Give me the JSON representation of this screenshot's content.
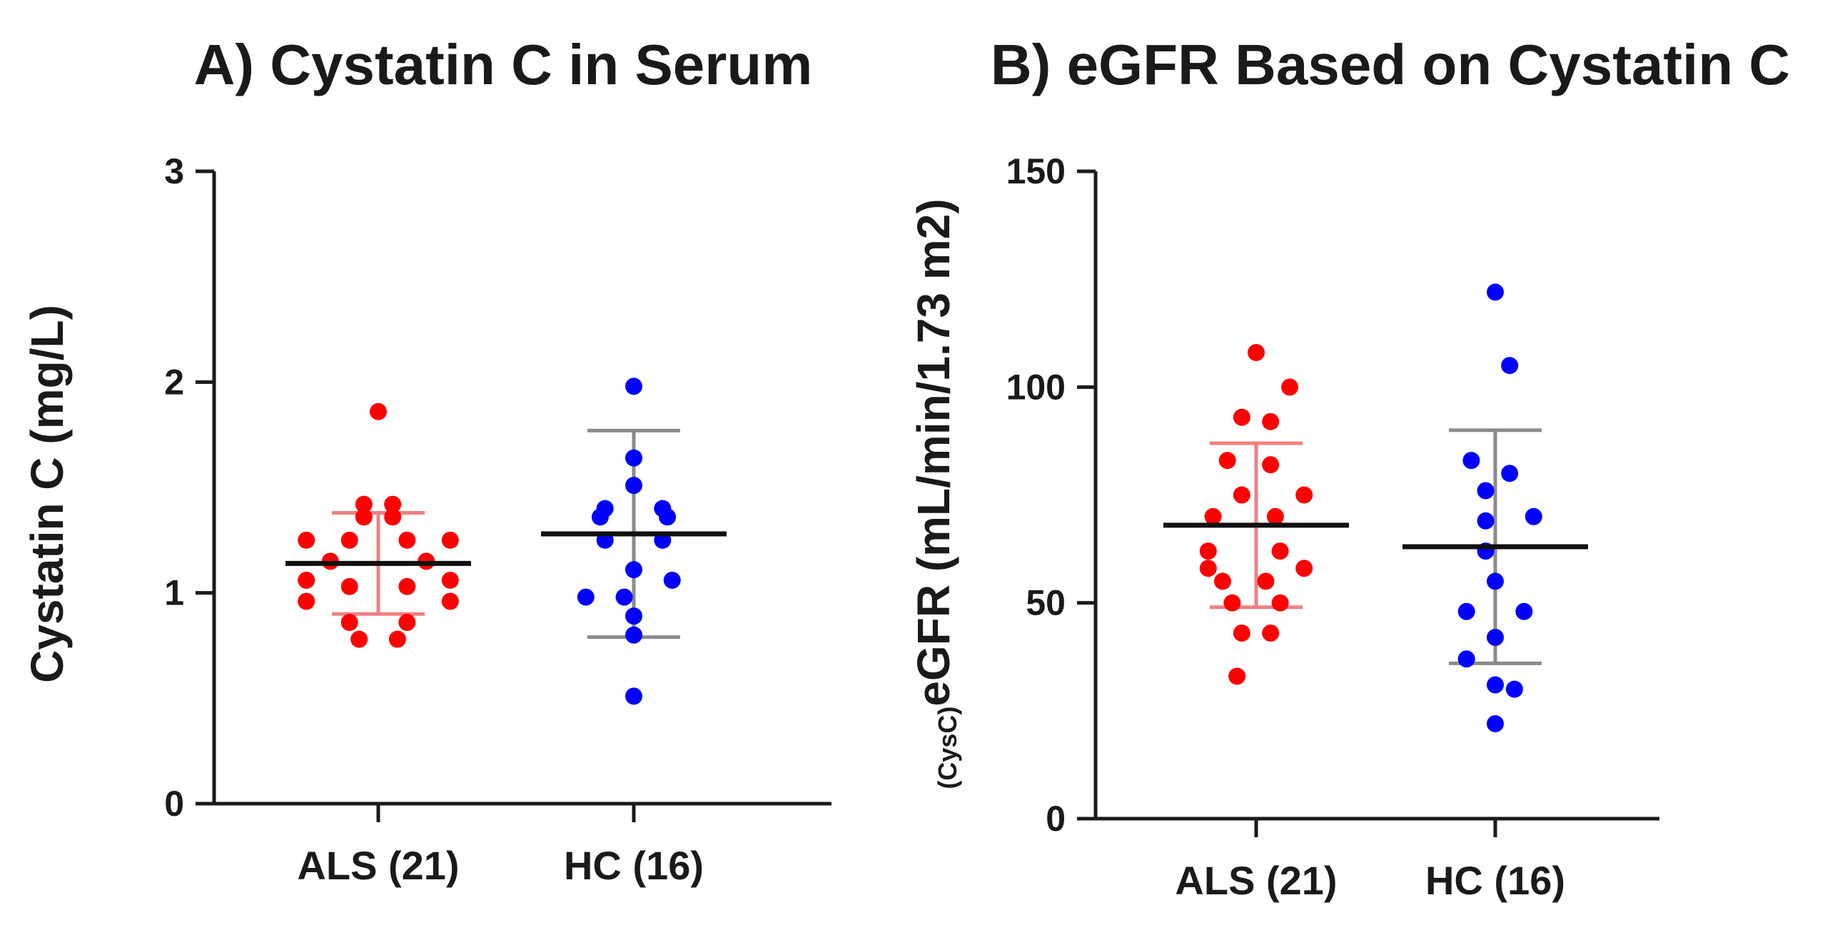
{
  "chart_data": [
    {
      "type": "scatter",
      "title": "A) Cystatin C in Serum",
      "ylabel": "Cystatin C (mg/L)",
      "ylim": [
        0,
        3
      ],
      "yticks": [
        "0",
        "1",
        "2",
        "3"
      ],
      "categories": [
        "ALS (21)",
        "HC (16)"
      ],
      "series": [
        {
          "name": "ALS (21)",
          "color": "#ff0000",
          "bar_color": "#f08080",
          "mean": 1.14,
          "sd_low": 0.9,
          "sd_high": 1.38,
          "points": [
            {
              "offset": 0,
              "value": 1.86
            },
            {
              "offset": -0.3,
              "value": 1.42
            },
            {
              "offset": 0.3,
              "value": 1.42
            },
            {
              "offset": -0.3,
              "value": 1.36
            },
            {
              "offset": 0.3,
              "value": 1.36
            },
            {
              "offset": -1.5,
              "value": 1.25
            },
            {
              "offset": 1.5,
              "value": 1.25
            },
            {
              "offset": -0.6,
              "value": 1.25
            },
            {
              "offset": 0.6,
              "value": 1.25
            },
            {
              "offset": -1.0,
              "value": 1.15
            },
            {
              "offset": 1.0,
              "value": 1.15
            },
            {
              "offset": -1.5,
              "value": 1.06
            },
            {
              "offset": 1.5,
              "value": 1.06
            },
            {
              "offset": -0.6,
              "value": 1.03
            },
            {
              "offset": 0.6,
              "value": 1.03
            },
            {
              "offset": -1.5,
              "value": 0.96
            },
            {
              "offset": 1.5,
              "value": 0.96
            },
            {
              "offset": -0.6,
              "value": 0.86
            },
            {
              "offset": 0.6,
              "value": 0.86
            },
            {
              "offset": -0.4,
              "value": 0.78
            },
            {
              "offset": 0.4,
              "value": 0.78
            }
          ]
        },
        {
          "name": "HC (16)",
          "color": "#0000ff",
          "bar_color": "#8a8a8a",
          "mean": 1.28,
          "sd_low": 0.79,
          "sd_high": 1.77,
          "points": [
            {
              "offset": 0,
              "value": 1.98
            },
            {
              "offset": 0,
              "value": 1.64
            },
            {
              "offset": 0,
              "value": 1.51
            },
            {
              "offset": -0.6,
              "value": 1.4
            },
            {
              "offset": 0.6,
              "value": 1.4
            },
            {
              "offset": -0.7,
              "value": 1.36
            },
            {
              "offset": 0.7,
              "value": 1.36
            },
            {
              "offset": -0.6,
              "value": 1.25
            },
            {
              "offset": 0.6,
              "value": 1.25
            },
            {
              "offset": 0,
              "value": 1.11
            },
            {
              "offset": 0.8,
              "value": 1.06
            },
            {
              "offset": -1.0,
              "value": 0.98
            },
            {
              "offset": -0.2,
              "value": 0.98
            },
            {
              "offset": 0,
              "value": 0.89
            },
            {
              "offset": 0,
              "value": 0.8
            },
            {
              "offset": 0,
              "value": 0.51
            }
          ]
        }
      ]
    },
    {
      "type": "scatter",
      "title": "B) eGFR Based on Cystatin C",
      "ylabel_sub": "(CysC)",
      "ylabel": "eGFR (mL/min/1.73 m2)",
      "ylim": [
        0,
        150
      ],
      "yticks": [
        "0",
        "50",
        "100",
        "150"
      ],
      "categories": [
        "ALS (21)",
        "HC (16)"
      ],
      "series": [
        {
          "name": "ALS (21)",
          "color": "#ff0000",
          "bar_color": "#f08080",
          "mean": 68,
          "sd_low": 49,
          "sd_high": 87,
          "points": [
            {
              "offset": 0,
              "value": 108
            },
            {
              "offset": 0.7,
              "value": 100
            },
            {
              "offset": -0.3,
              "value": 93
            },
            {
              "offset": 0.3,
              "value": 92
            },
            {
              "offset": -0.6,
              "value": 83
            },
            {
              "offset": 0.3,
              "value": 82
            },
            {
              "offset": -0.3,
              "value": 75
            },
            {
              "offset": 1.0,
              "value": 75
            },
            {
              "offset": -0.9,
              "value": 70
            },
            {
              "offset": 0.4,
              "value": 70
            },
            {
              "offset": -1.0,
              "value": 62
            },
            {
              "offset": 0.5,
              "value": 62
            },
            {
              "offset": -1.0,
              "value": 58
            },
            {
              "offset": 1.0,
              "value": 58
            },
            {
              "offset": -0.7,
              "value": 55
            },
            {
              "offset": 0.2,
              "value": 55
            },
            {
              "offset": -0.5,
              "value": 50
            },
            {
              "offset": 0.5,
              "value": 50
            },
            {
              "offset": -0.3,
              "value": 43
            },
            {
              "offset": 0.3,
              "value": 43
            },
            {
              "offset": -0.4,
              "value": 33
            }
          ]
        },
        {
          "name": "HC (16)",
          "color": "#0000ff",
          "bar_color": "#8a8a8a",
          "mean": 63,
          "sd_low": 36,
          "sd_high": 90,
          "points": [
            {
              "offset": 0,
              "value": 122
            },
            {
              "offset": 0.3,
              "value": 105
            },
            {
              "offset": -0.5,
              "value": 83
            },
            {
              "offset": 0.3,
              "value": 80
            },
            {
              "offset": -0.2,
              "value": 76
            },
            {
              "offset": 0.8,
              "value": 70
            },
            {
              "offset": -0.2,
              "value": 69
            },
            {
              "offset": -0.2,
              "value": 62
            },
            {
              "offset": 0,
              "value": 55
            },
            {
              "offset": -0.6,
              "value": 48
            },
            {
              "offset": 0.6,
              "value": 48
            },
            {
              "offset": 0,
              "value": 42
            },
            {
              "offset": -0.6,
              "value": 37
            },
            {
              "offset": 0,
              "value": 31
            },
            {
              "offset": 0,
              "value": 22
            },
            {
              "offset": 0.4,
              "value": 30
            }
          ]
        }
      ]
    }
  ]
}
